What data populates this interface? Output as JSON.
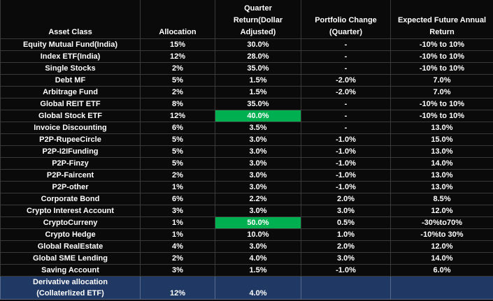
{
  "table": {
    "header": [
      "Asset Class",
      "Allocation",
      "Quarter\nReturn(Dollar\nAdjusted)",
      "Portfolio Change\n(Quarter)",
      "Expected Future Annual\nReturn"
    ],
    "rows": [
      [
        "Equity Mutual Fund(India)",
        "15%",
        "30.0%",
        "-",
        "-10% to 10%"
      ],
      [
        "Index ETF(India)",
        "12%",
        "28.0%",
        "-",
        "-10% to 10%"
      ],
      [
        "Single Stocks",
        "2%",
        "35.0%",
        "-",
        "-10% to 10%"
      ],
      [
        "Debt MF",
        "5%",
        "1.5%",
        "-2.0%",
        "7.0%"
      ],
      [
        "Arbitrage Fund",
        "2%",
        "1.5%",
        "-2.0%",
        "7.0%"
      ],
      [
        "Global REIT ETF",
        "8%",
        "35.0%",
        "-",
        "-10% to 10%"
      ],
      [
        "Global  Stock ETF",
        "12%",
        "40.0%",
        "-",
        "-10% to 10%"
      ],
      [
        "Invoice Discounting",
        "6%",
        "3.5%",
        "-",
        "13.0%"
      ],
      [
        "P2P-RupeeCircle",
        "5%",
        "3.0%",
        "-1.0%",
        "15.0%"
      ],
      [
        "P2P-I2IFunding",
        "5%",
        "3.0%",
        "-1.0%",
        "13.0%"
      ],
      [
        "P2P-Finzy",
        "5%",
        "3.0%",
        "-1.0%",
        "14.0%"
      ],
      [
        "P2P-Faircent",
        "2%",
        "3.0%",
        "-1.0%",
        "13.0%"
      ],
      [
        "P2P-other",
        "1%",
        "3.0%",
        "-1.0%",
        "13.0%"
      ],
      [
        "Corporate Bond",
        "6%",
        "2.2%",
        "2.0%",
        "8.5%"
      ],
      [
        "Crypto Interest Account",
        "3%",
        "3.0%",
        "3.0%",
        "12.0%"
      ],
      [
        "CryptoCurreny",
        "1%",
        "50.0%",
        "0.5%",
        "-30%to70%"
      ],
      [
        "Crypto Hedge",
        "1%",
        "10.0%",
        "1.0%",
        "-10%to 30%"
      ],
      [
        "Global RealEstate",
        "4%",
        "3.0%",
        "2.0%",
        "12.0%"
      ],
      [
        "Global SME Lending",
        "2%",
        "4.0%",
        "3.0%",
        "14.0%"
      ],
      [
        "Saving Account",
        "3%",
        "1.5%",
        "-1.0%",
        "6.0%"
      ],
      [
        "Derivative allocation\n(Collaterlized ETF)",
        "12%",
        "4.0%"
      ]
    ]
  }
}
